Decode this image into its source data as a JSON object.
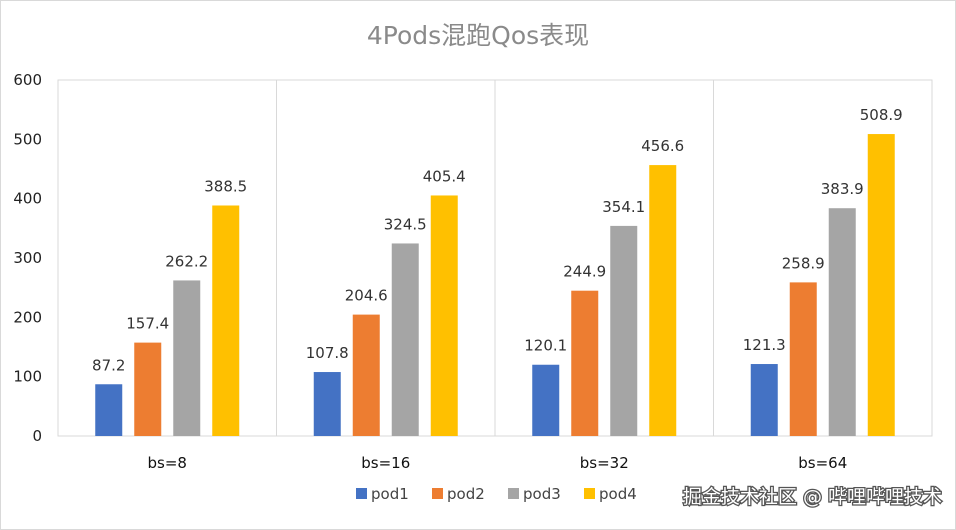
{
  "chart_data": {
    "type": "bar",
    "title": "4Pods混跑Qos表现",
    "categories": [
      "bs=8",
      "bs=16",
      "bs=32",
      "bs=64"
    ],
    "series": [
      {
        "name": "pod1",
        "color": "#4472c4",
        "values": [
          87.2,
          107.8,
          120.1,
          121.3
        ]
      },
      {
        "name": "pod2",
        "color": "#ed7d31",
        "values": [
          157.4,
          204.6,
          244.9,
          258.9
        ]
      },
      {
        "name": "pod3",
        "color": "#a5a5a5",
        "values": [
          262.2,
          324.5,
          354.1,
          383.9
        ]
      },
      {
        "name": "pod4",
        "color": "#ffc000",
        "values": [
          388.5,
          405.4,
          456.6,
          508.9
        ]
      }
    ],
    "ylim": [
      0,
      600
    ],
    "yticks": [
      0,
      100,
      200,
      300,
      400,
      500,
      600
    ],
    "legend_position": "bottom-right",
    "grid": "vertical category separators"
  },
  "watermark": "掘金技术社区 @ 哔哩哔哩技术"
}
